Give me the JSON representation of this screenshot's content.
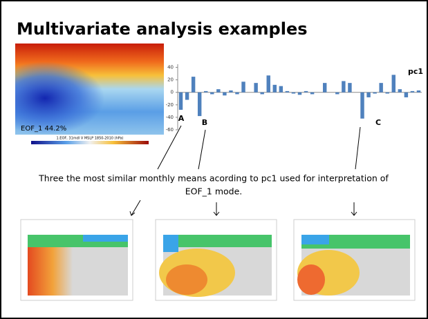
{
  "title": "Multivariate analysis examples",
  "eof_map": {
    "label": "EOF_1  44.2%",
    "caption": "1.EOF, 31mdl V MSLP 1850-2010 (hPa)"
  },
  "chart_data": {
    "type": "bar",
    "categories": [
      null,
      null,
      null,
      null,
      null,
      null,
      null,
      null,
      null,
      null,
      null,
      null,
      null,
      null,
      null,
      null,
      null,
      null,
      null,
      null,
      null,
      null,
      null,
      null,
      null,
      null,
      null,
      null,
      null,
      null,
      null,
      null,
      null,
      null,
      null,
      null,
      null,
      null,
      null
    ],
    "series": [
      {
        "name": "pc1",
        "color": "#4f81bd",
        "values": [
          -28,
          -12,
          25,
          -38,
          2,
          -3,
          5,
          -5,
          3,
          -3,
          17,
          0,
          15,
          -3,
          27,
          12,
          10,
          2,
          -2,
          -4,
          2,
          -3,
          0,
          15,
          0,
          -3,
          18,
          15,
          0,
          -42,
          -8,
          -2,
          15,
          -2,
          28,
          5,
          -8,
          2,
          3
        ]
      }
    ],
    "ylim": [
      -60,
      45
    ],
    "yticks": [
      -60,
      -40,
      -20,
      0,
      20,
      40
    ]
  },
  "annotations": [
    "A",
    "B",
    "C"
  ],
  "description": [
    "Three the most similar monthly means acording to pc1 used for interpretation of",
    "EOF_1 mode."
  ]
}
